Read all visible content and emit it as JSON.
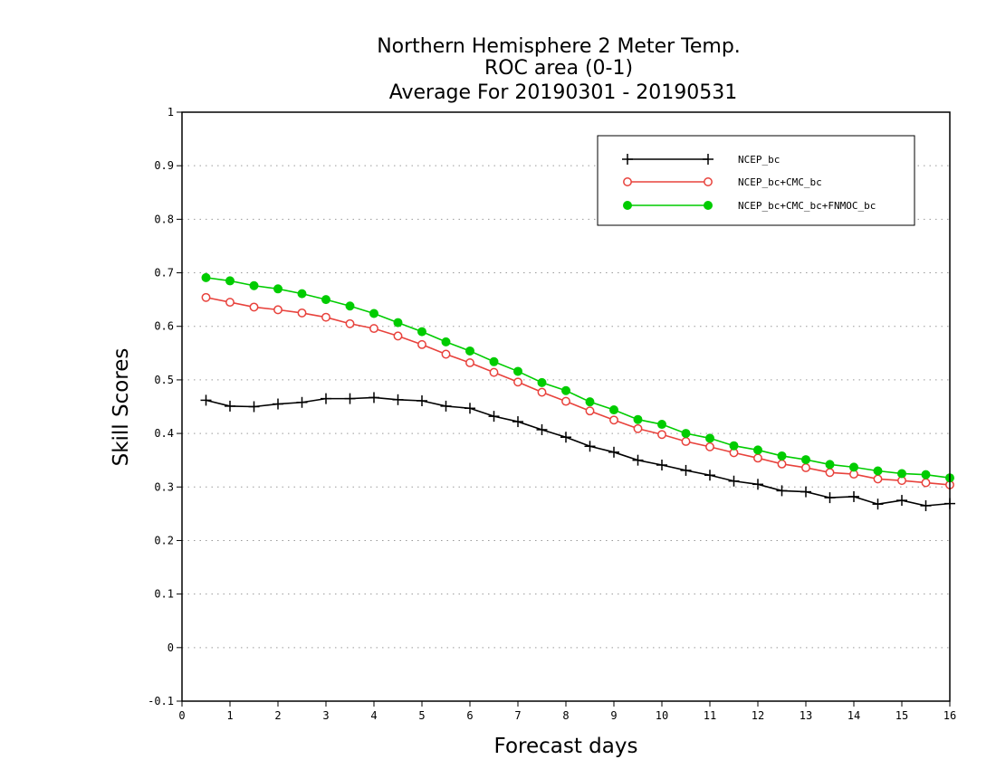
{
  "colors": {
    "NCEP_bc": "#000000",
    "NCEP_bc+CMC_bc": "#e8423c",
    "NCEP_bc+CMC_bc+FNMOC_bc": "#00cc00",
    "gridline": "#9a9a9a",
    "axis": "#000000"
  },
  "chart_data": {
    "type": "line",
    "title": [
      "Northern Hemisphere 2 Meter Temp.",
      "ROC area (0-1)",
      "Average For 20190301 - 20190531"
    ],
    "xlabel": "Forecast days",
    "ylabel": "Skill Scores",
    "xlim": [
      0,
      16
    ],
    "ylim": [
      -0.1,
      1
    ],
    "x_ticks": [
      "0",
      "1",
      "2",
      "3",
      "4",
      "5",
      "6",
      "7",
      "8",
      "9",
      "10",
      "11",
      "12",
      "13",
      "14",
      "15",
      "16"
    ],
    "y_ticks": [
      "-0.1",
      "0",
      "0.1",
      "0.2",
      "0.3",
      "0.4",
      "0.5",
      "0.6",
      "0.7",
      "0.8",
      "0.9",
      "1"
    ],
    "grid": "horizontal dotted",
    "legend_position": "top-right",
    "x": [
      0.5,
      1.0,
      1.5,
      2.0,
      2.5,
      3.0,
      3.5,
      4.0,
      4.5,
      5.0,
      5.5,
      6.0,
      6.5,
      7.0,
      7.5,
      8.0,
      8.5,
      9.0,
      9.5,
      10.0,
      10.5,
      11.0,
      11.5,
      12.0,
      12.5,
      13.0,
      13.5,
      14.0,
      14.5,
      15.0,
      15.5,
      16.0
    ],
    "series": [
      {
        "name": "NCEP_bc",
        "marker": "plus",
        "values": [
          0.462,
          0.451,
          0.45,
          0.455,
          0.458,
          0.465,
          0.465,
          0.467,
          0.463,
          0.461,
          0.451,
          0.447,
          0.432,
          0.422,
          0.407,
          0.393,
          0.376,
          0.365,
          0.35,
          0.341,
          0.331,
          0.322,
          0.311,
          0.305,
          0.293,
          0.291,
          0.28,
          0.282,
          0.268,
          0.275,
          0.265,
          0.269
        ]
      },
      {
        "name": "NCEP_bc+CMC_bc",
        "marker": "open-circle",
        "values": [
          0.654,
          0.645,
          0.636,
          0.631,
          0.625,
          0.617,
          0.605,
          0.596,
          0.582,
          0.566,
          0.548,
          0.532,
          0.514,
          0.496,
          0.477,
          0.46,
          0.442,
          0.425,
          0.409,
          0.398,
          0.385,
          0.375,
          0.364,
          0.354,
          0.343,
          0.336,
          0.327,
          0.324,
          0.315,
          0.312,
          0.308,
          0.304
        ]
      },
      {
        "name": "NCEP_bc+CMC_bc+FNMOC_bc",
        "marker": "filled-circle",
        "values": [
          0.691,
          0.685,
          0.676,
          0.67,
          0.661,
          0.65,
          0.638,
          0.624,
          0.607,
          0.59,
          0.571,
          0.554,
          0.534,
          0.516,
          0.495,
          0.48,
          0.459,
          0.444,
          0.426,
          0.417,
          0.4,
          0.391,
          0.377,
          0.369,
          0.358,
          0.351,
          0.342,
          0.337,
          0.33,
          0.325,
          0.323,
          0.317
        ]
      }
    ]
  }
}
